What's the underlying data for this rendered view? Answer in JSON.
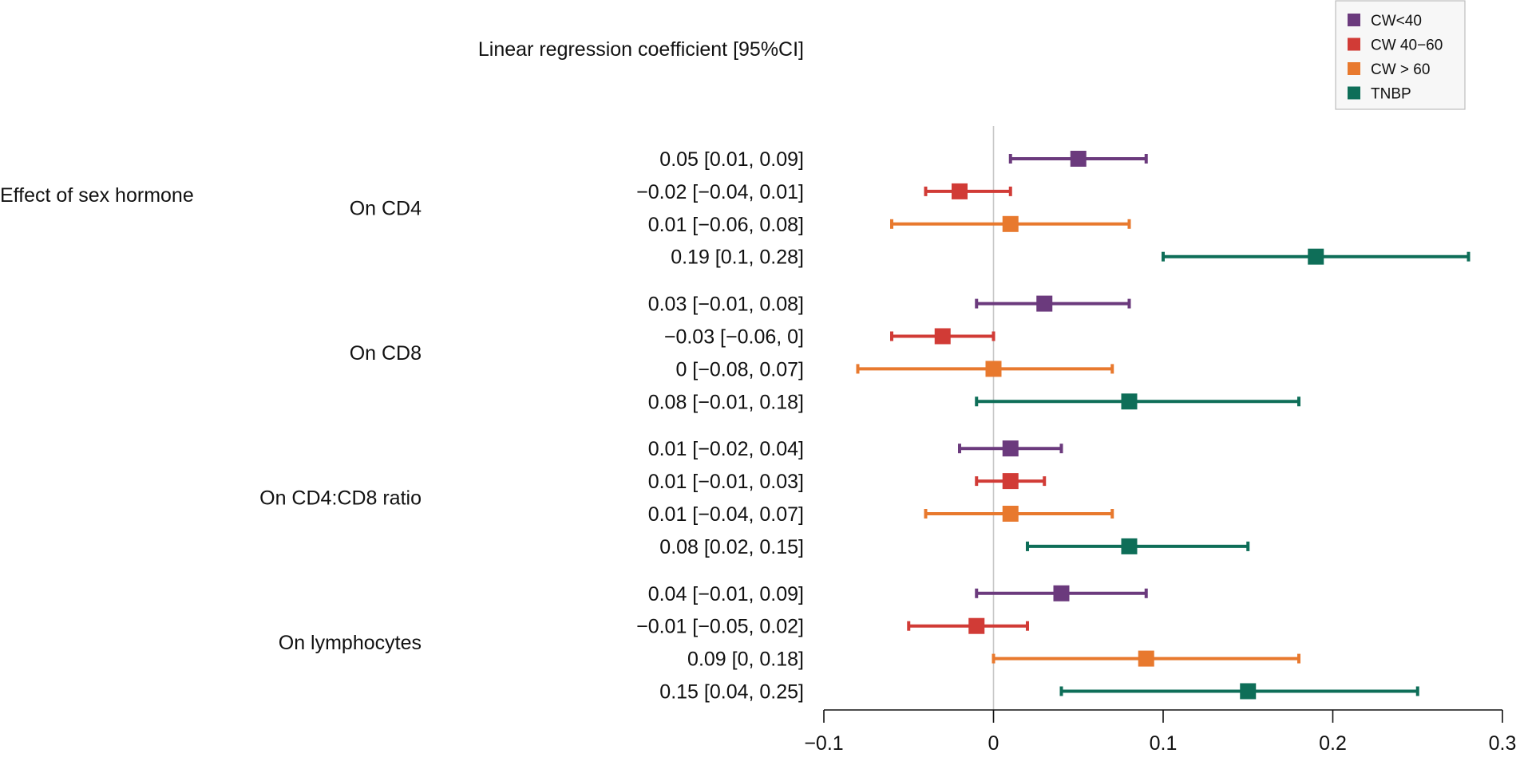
{
  "chart_data": {
    "type": "forest",
    "header": "Linear regression coefficient [95%CI]",
    "section_label": "Effect of sex hormone",
    "groups": [
      {
        "label": "On CD4",
        "rows": [
          {
            "series": "CW<40",
            "est": 0.05,
            "lo": 0.01,
            "hi": 0.09,
            "text": "0.05 [0.01, 0.09]"
          },
          {
            "series": "CW 40−60",
            "est": -0.02,
            "lo": -0.04,
            "hi": 0.01,
            "text": "−0.02 [−0.04, 0.01]"
          },
          {
            "series": "CW > 60",
            "est": 0.01,
            "lo": -0.06,
            "hi": 0.08,
            "text": "0.01 [−0.06, 0.08]"
          },
          {
            "series": "TNBP",
            "est": 0.19,
            "lo": 0.1,
            "hi": 0.28,
            "text": "0.19 [0.1, 0.28]"
          }
        ]
      },
      {
        "label": "On CD8",
        "rows": [
          {
            "series": "CW<40",
            "est": 0.03,
            "lo": -0.01,
            "hi": 0.08,
            "text": "0.03 [−0.01, 0.08]"
          },
          {
            "series": "CW 40−60",
            "est": -0.03,
            "lo": -0.06,
            "hi": 0.0,
            "text": "−0.03 [−0.06, 0]"
          },
          {
            "series": "CW > 60",
            "est": 0.0,
            "lo": -0.08,
            "hi": 0.07,
            "text": "0 [−0.08, 0.07]"
          },
          {
            "series": "TNBP",
            "est": 0.08,
            "lo": -0.01,
            "hi": 0.18,
            "text": "0.08 [−0.01, 0.18]"
          }
        ]
      },
      {
        "label": "On CD4:CD8 ratio",
        "rows": [
          {
            "series": "CW<40",
            "est": 0.01,
            "lo": -0.02,
            "hi": 0.04,
            "text": "0.01 [−0.02, 0.04]"
          },
          {
            "series": "CW 40−60",
            "est": 0.01,
            "lo": -0.01,
            "hi": 0.03,
            "text": "0.01 [−0.01, 0.03]"
          },
          {
            "series": "CW > 60",
            "est": 0.01,
            "lo": -0.04,
            "hi": 0.07,
            "text": "0.01 [−0.04, 0.07]"
          },
          {
            "series": "TNBP",
            "est": 0.08,
            "lo": 0.02,
            "hi": 0.15,
            "text": "0.08 [0.02, 0.15]"
          }
        ]
      },
      {
        "label": "On lymphocytes",
        "rows": [
          {
            "series": "CW<40",
            "est": 0.04,
            "lo": -0.01,
            "hi": 0.09,
            "text": "0.04 [−0.01, 0.09]"
          },
          {
            "series": "CW 40−60",
            "est": -0.01,
            "lo": -0.05,
            "hi": 0.02,
            "text": "−0.01 [−0.05, 0.02]"
          },
          {
            "series": "CW > 60",
            "est": 0.09,
            "lo": 0.0,
            "hi": 0.18,
            "text": "0.09 [0, 0.18]"
          },
          {
            "series": "TNBP",
            "est": 0.15,
            "lo": 0.04,
            "hi": 0.25,
            "text": "0.15 [0.04, 0.25]"
          }
        ]
      }
    ],
    "legend": [
      {
        "name": "CW<40",
        "color": "#6B3A7D"
      },
      {
        "name": "CW 40−60",
        "color": "#D13B36"
      },
      {
        "name": "CW > 60",
        "color": "#E8792E"
      },
      {
        "name": "TNBP",
        "color": "#0E6E58"
      }
    ],
    "legend_position": "top-right",
    "xlim": [
      -0.1,
      0.3
    ],
    "xticks": [
      -0.1,
      0,
      0.1,
      0.2,
      0.3
    ],
    "xtick_labels": [
      "−0.1",
      "0",
      "0.1",
      "0.2",
      "0.3"
    ],
    "reference_line": 0,
    "grid": false
  }
}
